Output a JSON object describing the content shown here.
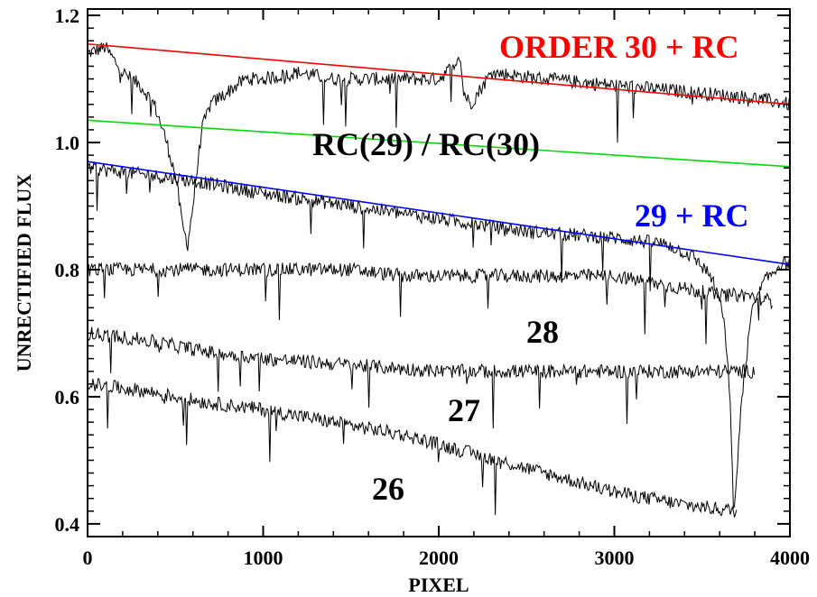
{
  "chart_data": {
    "type": "line",
    "title": "",
    "xlabel": "PIXEL",
    "ylabel": "UNRECTIFIED FLUX",
    "xlim": [
      0,
      4000
    ],
    "ylim": [
      0.38,
      1.21
    ],
    "x_ticks": [
      0,
      1000,
      2000,
      3000,
      4000
    ],
    "x_tick_labels": [
      "0",
      "1000",
      "2000",
      "3000",
      "4000"
    ],
    "y_ticks": [
      0.4,
      0.6,
      0.8,
      1.0,
      1.2
    ],
    "y_tick_labels": [
      "0.4",
      "0.6",
      "0.8",
      "1.0",
      "1.2"
    ],
    "grid": false,
    "colors": {
      "red": "#ff0000",
      "green": "#00dd00",
      "blue": "#0000ff",
      "black": "#000000"
    },
    "fit_lines": [
      {
        "name": "ORDER 30 + RC",
        "color": "#ff0000",
        "x": [
          0,
          4000
        ],
        "y": [
          1.155,
          1.06
        ]
      },
      {
        "name": "RC(29) / RC(30)",
        "color": "#00dd00",
        "x": [
          0,
          4000
        ],
        "y": [
          1.035,
          0.962
        ]
      },
      {
        "name": "29 + RC",
        "color": "#0000ff",
        "x": [
          0,
          4000
        ],
        "y": [
          0.97,
          0.808
        ]
      }
    ],
    "series": [
      {
        "name": "ORDER 30",
        "x": [
          0,
          100,
          200,
          300,
          380,
          440,
          500,
          540,
          570,
          600,
          650,
          700,
          800,
          900,
          1000,
          1200,
          1400,
          1600,
          1800,
          2000,
          2080,
          2120,
          2140,
          2180,
          2300,
          2600,
          3000,
          3400,
          3800,
          4000
        ],
        "y": [
          1.14,
          1.15,
          1.11,
          1.09,
          1.06,
          1.01,
          0.95,
          0.87,
          0.84,
          0.9,
          1.02,
          1.06,
          1.08,
          1.1,
          1.1,
          1.11,
          1.1,
          1.1,
          1.1,
          1.1,
          1.12,
          1.14,
          1.08,
          1.06,
          1.11,
          1.1,
          1.09,
          1.08,
          1.07,
          1.06
        ]
      },
      {
        "name": "ORDER 29",
        "x": [
          0,
          300,
          600,
          1000,
          1500,
          2000,
          2500,
          3000,
          3300,
          3450,
          3550,
          3620,
          3660,
          3680,
          3720,
          3780,
          3850,
          3950,
          4000
        ],
        "y": [
          0.96,
          0.95,
          0.94,
          0.92,
          0.9,
          0.88,
          0.86,
          0.85,
          0.84,
          0.82,
          0.79,
          0.73,
          0.6,
          0.4,
          0.58,
          0.73,
          0.78,
          0.81,
          0.81
        ]
      },
      {
        "name": "ORDER 28",
        "x": [
          0,
          300,
          600,
          1000,
          1500,
          1800,
          2000,
          2300,
          2600,
          3000,
          3200,
          3400,
          3600,
          3750,
          3900
        ],
        "y": [
          0.8,
          0.8,
          0.8,
          0.8,
          0.8,
          0.79,
          0.79,
          0.79,
          0.79,
          0.79,
          0.78,
          0.77,
          0.76,
          0.76,
          0.75
        ]
      },
      {
        "name": "ORDER 27",
        "x": [
          0,
          300,
          700,
          1000,
          1500,
          2000,
          2500,
          3000,
          3400,
          3800
        ],
        "y": [
          0.7,
          0.69,
          0.67,
          0.66,
          0.65,
          0.64,
          0.64,
          0.64,
          0.64,
          0.64
        ]
      },
      {
        "name": "ORDER 26",
        "x": [
          0,
          300,
          700,
          1000,
          1400,
          1800,
          2200,
          2600,
          3000,
          3400,
          3700
        ],
        "y": [
          0.62,
          0.61,
          0.59,
          0.58,
          0.56,
          0.54,
          0.51,
          0.48,
          0.45,
          0.43,
          0.42
        ]
      }
    ],
    "annotations": [
      {
        "text": "ORDER 30 + RC",
        "color": "#ff0000"
      },
      {
        "text": "RC(29) / RC(30)",
        "color": "#000000"
      },
      {
        "text": "29 + RC",
        "color": "#0000ff"
      },
      {
        "text": "28",
        "color": "#000000"
      },
      {
        "text": "27",
        "color": "#000000"
      },
      {
        "text": "26",
        "color": "#000000"
      }
    ]
  }
}
